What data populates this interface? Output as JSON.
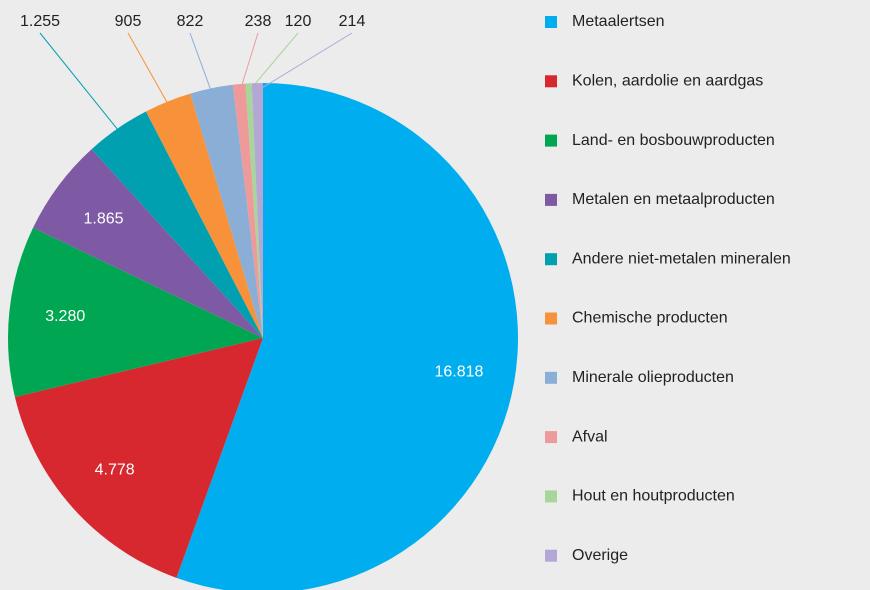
{
  "chart_data": {
    "type": "pie",
    "categories": [
      "Metaalertsen",
      "Kolen, aardolie en aardgas",
      "Land- en bosbouwproducten",
      "Metalen en metaalproducten",
      "Andere niet-metalen mineralen",
      "Chemische producten",
      "Minerale olieproducten",
      "Afval",
      "Hout en houtproducten",
      "Overige"
    ],
    "values": [
      16818,
      4778,
      3280,
      1865,
      1255,
      905,
      822,
      238,
      120,
      214
    ],
    "value_labels": [
      "16.818",
      "4.778",
      "3.280",
      "1.865",
      "1.255",
      "905",
      "822",
      "238",
      "120",
      "214"
    ],
    "colors": [
      "#00aeef",
      "#d7282f",
      "#00a651",
      "#7e5aa5",
      "#00a0b0",
      "#f7923a",
      "#8aaed6",
      "#ef9a9a",
      "#a8d59a",
      "#b4a7d6"
    ],
    "legend": "right"
  }
}
